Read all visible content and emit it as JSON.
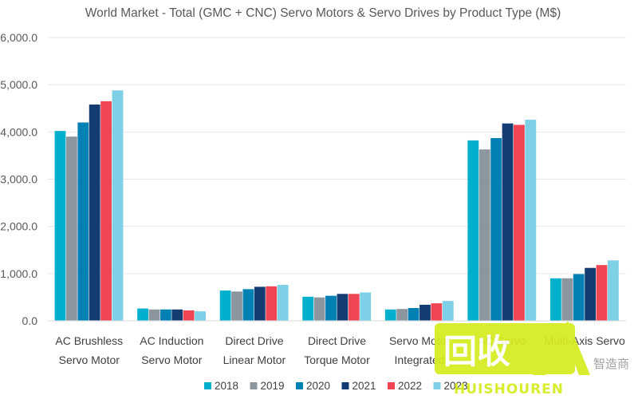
{
  "chart_data": {
    "type": "bar",
    "title": "World Market - Total (GMC + CNC) Servo Motors & Servo Drives by Product Type (M$)",
    "xlabel": "",
    "ylabel": "",
    "categories": [
      [
        "AC Brushless",
        "Servo Motor"
      ],
      [
        "AC Induction",
        "Servo Motor"
      ],
      [
        "Direct Drive",
        "Linear Motor"
      ],
      [
        "Direct Drive",
        "Torque Motor"
      ],
      [
        "Servo Motor",
        "Integrated"
      ],
      [
        "AC Servo",
        ""
      ],
      [
        "Multi-Axis Servo",
        ""
      ]
    ],
    "y_ticks": [
      "0.0",
      "1,000.0",
      "2,000.0",
      "3,000.0",
      "4,000.0",
      "5,000.0",
      "6,000.0"
    ],
    "ylim": [
      0,
      6000
    ],
    "grid": true,
    "legend_position": "bottom",
    "series": [
      {
        "name": "2018",
        "color": "#00b0cc",
        "values": [
          4020,
          260,
          640,
          510,
          240,
          3820,
          900
        ]
      },
      {
        "name": "2019",
        "color": "#8c969e",
        "values": [
          3900,
          240,
          620,
          495,
          250,
          3630,
          900
        ]
      },
      {
        "name": "2020",
        "color": "#0080b3",
        "values": [
          4200,
          240,
          670,
          530,
          270,
          3870,
          990
        ]
      },
      {
        "name": "2021",
        "color": "#133c73",
        "values": [
          4580,
          240,
          720,
          570,
          340,
          4180,
          1120
        ]
      },
      {
        "name": "2022",
        "color": "#f04552",
        "values": [
          4650,
          220,
          730,
          570,
          370,
          4150,
          1180
        ]
      },
      {
        "name": "2023",
        "color": "#7dd0e6",
        "values": [
          4880,
          200,
          760,
          600,
          420,
          4260,
          1280
        ]
      }
    ]
  },
  "watermark": {
    "main_text": "回收",
    "brand_text": "HUISHOUREN",
    "small_text": "智造商"
  }
}
